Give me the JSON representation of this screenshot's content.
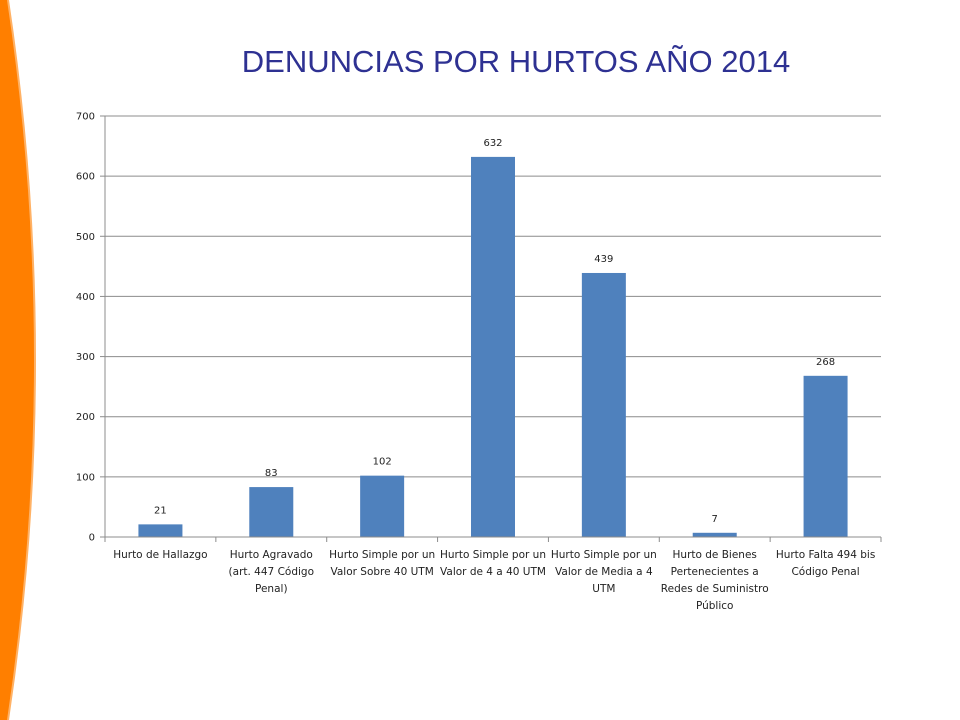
{
  "slide": {
    "title": "DENUNCIAS POR HURTOS AÑO 2014",
    "accent_color": "#FF7F00",
    "title_color": "#2E3192"
  },
  "chart_data": {
    "type": "bar",
    "title": "DENUNCIAS POR HURTOS AÑO 2014",
    "categories": [
      "Hurto de Hallazgo",
      "Hurto Agravado (art. 447 Código Penal)",
      "Hurto Simple por un Valor Sobre 40 UTM",
      "Hurto Simple por un Valor de 4 a 40 UTM",
      "Hurto Simple por un Valor de Media a 4 UTM",
      "Hurto de Bienes Pertenecientes a Redes de Suministro Público",
      "Hurto Falta 494 bis Código Penal"
    ],
    "category_lines": [
      [
        "Hurto de Hallazgo"
      ],
      [
        "Hurto Agravado",
        "(art. 447 Código",
        "Penal)"
      ],
      [
        "Hurto Simple por un",
        "Valor Sobre 40 UTM"
      ],
      [
        "Hurto Simple por un",
        "Valor de 4 a 40 UTM"
      ],
      [
        "Hurto Simple por un",
        "Valor de Media a 4",
        "UTM"
      ],
      [
        "Hurto de Bienes",
        "Pertenecientes a",
        "Redes de Suministro",
        "Público"
      ],
      [
        "Hurto Falta 494 bis",
        "Código Penal"
      ]
    ],
    "values": [
      21,
      83,
      102,
      632,
      439,
      7,
      268
    ],
    "ylim": [
      0,
      700
    ],
    "yticks": [
      0,
      100,
      200,
      300,
      400,
      500,
      600,
      700
    ],
    "grid": true,
    "bar_color": "#4F81BD",
    "legend": "none",
    "xlabel": "",
    "ylabel": ""
  }
}
